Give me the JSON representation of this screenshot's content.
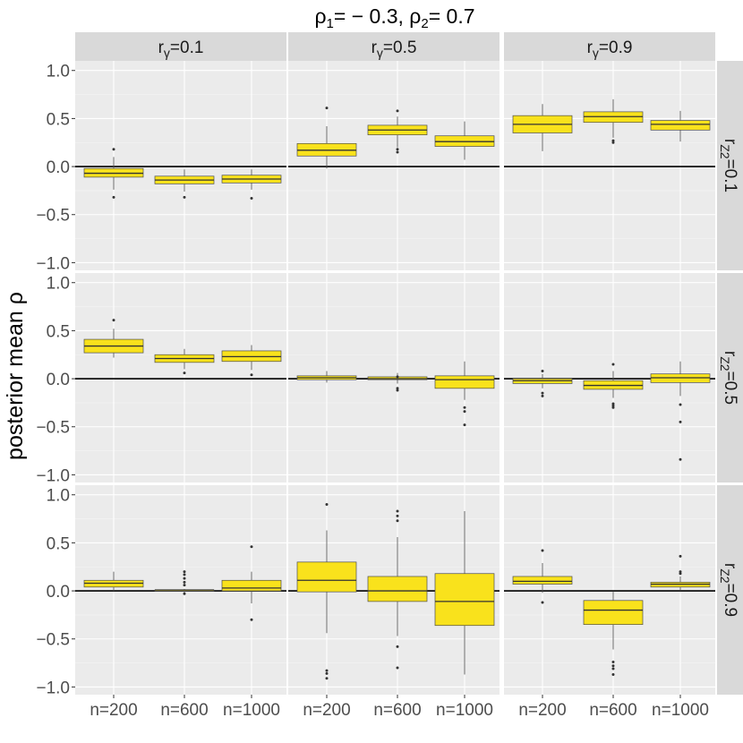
{
  "chart_data": {
    "type": "boxplot",
    "title": "ρ₁= − 0.3, ρ₂= 0.7",
    "title_parts": {
      "rho1_label": "ρ",
      "rho1_sub": "1",
      "rho1_value": "= − 0.3, ",
      "rho2_label": "ρ",
      "rho2_sub": "2",
      "rho2_value": "= 0.7"
    },
    "ylabel": "posterior mean ρ",
    "ylim": [
      -1.08,
      1.1
    ],
    "yticks": [
      -1.0,
      -0.5,
      0.0,
      0.5,
      1.0
    ],
    "ytick_labels": [
      "−1.0",
      "−0.5",
      "0.0",
      "0.5",
      "1.0"
    ],
    "reference_line": 0.0,
    "categories": [
      "n=200",
      "n=600",
      "n=1000"
    ],
    "columns": [
      {
        "prefix": "r",
        "sub": "γ",
        "value": "=0.1"
      },
      {
        "prefix": "r",
        "sub": "γ",
        "value": "=0.5"
      },
      {
        "prefix": "r",
        "sub": "γ",
        "value": "=0.9"
      }
    ],
    "rows": [
      {
        "prefix": "r",
        "sub": "Z2",
        "value": "=0.1"
      },
      {
        "prefix": "r",
        "sub": "Z2",
        "value": "=0.5"
      },
      {
        "prefix": "r",
        "sub": "Z2",
        "value": "=0.9"
      }
    ],
    "box_color": "#f9e21c",
    "panels": [
      [
        [
          {
            "min": -0.24,
            "q1": -0.11,
            "median": -0.07,
            "q3": -0.02,
            "max": 0.1,
            "outliers": [
              0.18,
              -0.32
            ]
          },
          {
            "min": -0.26,
            "q1": -0.18,
            "median": -0.14,
            "q3": -0.1,
            "max": -0.03,
            "outliers": [
              -0.32
            ]
          },
          {
            "min": -0.24,
            "q1": -0.17,
            "median": -0.13,
            "q3": -0.09,
            "max": -0.03,
            "outliers": [
              -0.33
            ]
          }
        ],
        [
          {
            "min": -0.02,
            "q1": 0.11,
            "median": 0.17,
            "q3": 0.24,
            "max": 0.42,
            "outliers": [
              0.61
            ]
          },
          {
            "min": 0.2,
            "q1": 0.33,
            "median": 0.38,
            "q3": 0.43,
            "max": 0.52,
            "outliers": [
              0.58,
              0.18,
              0.15
            ]
          },
          {
            "min": 0.07,
            "q1": 0.21,
            "median": 0.26,
            "q3": 0.32,
            "max": 0.47,
            "outliers": []
          }
        ],
        [
          {
            "min": 0.16,
            "q1": 0.35,
            "median": 0.44,
            "q3": 0.53,
            "max": 0.65,
            "outliers": []
          },
          {
            "min": 0.3,
            "q1": 0.46,
            "median": 0.52,
            "q3": 0.57,
            "max": 0.7,
            "outliers": [
              0.27,
              0.25
            ]
          },
          {
            "min": 0.26,
            "q1": 0.38,
            "median": 0.44,
            "q3": 0.48,
            "max": 0.58,
            "outliers": []
          }
        ]
      ],
      [
        [
          {
            "min": 0.22,
            "q1": 0.27,
            "median": 0.34,
            "q3": 0.41,
            "max": 0.52,
            "outliers": [
              0.61
            ]
          },
          {
            "min": 0.1,
            "q1": 0.17,
            "median": 0.21,
            "q3": 0.25,
            "max": 0.31,
            "outliers": [
              0.06
            ]
          },
          {
            "min": 0.09,
            "q1": 0.18,
            "median": 0.23,
            "q3": 0.29,
            "max": 0.35,
            "outliers": [
              0.04
            ]
          }
        ],
        [
          {
            "min": -0.04,
            "q1": -0.01,
            "median": 0.01,
            "q3": 0.03,
            "max": 0.08,
            "outliers": []
          },
          {
            "min": -0.05,
            "q1": -0.01,
            "median": 0.0,
            "q3": 0.02,
            "max": 0.06,
            "outliers": [
              -0.1,
              -0.12,
              0.02
            ]
          },
          {
            "min": -0.22,
            "q1": -0.1,
            "median": -0.01,
            "q3": 0.03,
            "max": 0.18,
            "outliers": [
              -0.3,
              -0.34,
              -0.48
            ]
          }
        ],
        [
          {
            "min": -0.1,
            "q1": -0.05,
            "median": -0.02,
            "q3": 0.0,
            "max": 0.05,
            "outliers": [
              0.08,
              -0.15,
              -0.18
            ]
          },
          {
            "min": -0.2,
            "q1": -0.11,
            "median": -0.07,
            "q3": -0.02,
            "max": 0.08,
            "outliers": [
              0.15,
              -0.26,
              -0.28,
              -0.3
            ]
          },
          {
            "min": -0.18,
            "q1": -0.04,
            "median": 0.01,
            "q3": 0.05,
            "max": 0.18,
            "outliers": [
              -0.27,
              -0.45,
              -0.84
            ]
          }
        ]
      ],
      [
        [
          {
            "min": 0.0,
            "q1": 0.04,
            "median": 0.08,
            "q3": 0.11,
            "max": 0.2,
            "outliers": []
          },
          {
            "min": -0.02,
            "q1": 0.0,
            "median": 0.01,
            "q3": 0.01,
            "max": 0.02,
            "outliers": [
              0.2,
              0.17,
              0.13,
              0.09,
              0.06,
              -0.03
            ]
          },
          {
            "min": -0.13,
            "q1": 0.0,
            "median": 0.03,
            "q3": 0.11,
            "max": 0.2,
            "outliers": [
              0.46,
              -0.3
            ]
          }
        ],
        [
          {
            "min": -0.44,
            "q1": -0.01,
            "median": 0.11,
            "q3": 0.3,
            "max": 0.63,
            "outliers": [
              0.9,
              -0.83,
              -0.86,
              -0.91
            ]
          },
          {
            "min": -0.47,
            "q1": -0.11,
            "median": 0.0,
            "q3": 0.15,
            "max": 0.56,
            "outliers": [
              0.83,
              0.78,
              0.73,
              -0.58,
              -0.8
            ]
          },
          {
            "min": -0.87,
            "q1": -0.36,
            "median": -0.11,
            "q3": 0.18,
            "max": 0.83,
            "outliers": []
          }
        ],
        [
          {
            "min": -0.02,
            "q1": 0.07,
            "median": 0.1,
            "q3": 0.15,
            "max": 0.29,
            "outliers": [
              0.42,
              -0.12
            ]
          },
          {
            "min": -0.61,
            "q1": -0.35,
            "median": -0.2,
            "q3": -0.1,
            "max": -0.01,
            "outliers": [
              -0.74,
              -0.78,
              -0.81,
              -0.87
            ]
          },
          {
            "min": 0.01,
            "q1": 0.04,
            "median": 0.07,
            "q3": 0.09,
            "max": 0.15,
            "outliers": [
              0.36,
              0.2,
              0.18
            ]
          }
        ]
      ]
    ]
  }
}
